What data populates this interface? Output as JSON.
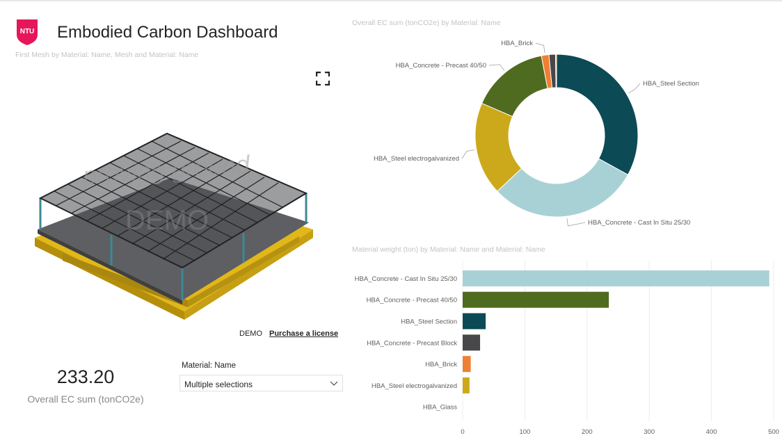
{
  "header": {
    "logo_text": "NTU",
    "title": "Embodied Carbon Dashboard"
  },
  "model_viewer": {
    "title": "First Mesh by Material: Name, Mesh and Material: Name",
    "watermark_line1": "proving ground",
    "watermark_line2": "DEMO",
    "demo_label": "DEMO",
    "license_link": "Purchase a license"
  },
  "kpi": {
    "value": "233.20",
    "label": "Overall EC sum (tonCO2e)"
  },
  "slicer": {
    "label": "Material: Name",
    "value": "Multiple selections"
  },
  "colors": {
    "steel_section": "#0c4a55",
    "cast_in_situ": "#a8d1d5",
    "steel_galv": "#cca91a",
    "precast_4050": "#4f6b1f",
    "brick": "#ef7f33",
    "precast_block": "#48484a",
    "glass": "#e0a81f"
  },
  "chart_data": [
    {
      "type": "pie",
      "title": "Overall EC sum (tonCO2e) by Material: Name",
      "donut": true,
      "slices": [
        {
          "label": "HBA_Steel Section",
          "value": 33.0,
          "color": "#0c4a55"
        },
        {
          "label": "HBA_Concrete - Cast In Situ 25/30",
          "value": 30.0,
          "color": "#a8d1d5"
        },
        {
          "label": "HBA_Steel electrogalvanized",
          "value": 18.5,
          "color": "#cca91a"
        },
        {
          "label": "HBA_Concrete - Precast 40/50",
          "value": 15.5,
          "color": "#4f6b1f"
        },
        {
          "label": "HBA_Brick",
          "value": 1.5,
          "color": "#ef7f33"
        },
        {
          "label": "",
          "value": 1.3,
          "color": "#48484a"
        },
        {
          "label": "",
          "value": 0.2,
          "color": "#e0a81f"
        }
      ]
    },
    {
      "type": "bar",
      "orientation": "horizontal",
      "title": "Material weight (ton) by Material: Name and Material: Name",
      "categories": [
        "HBA_Concrete - Cast In Situ 25/30",
        "HBA_Concrete - Precast 40/50",
        "HBA_Steel Section",
        "HBA_Concrete - Precast Block",
        "HBA_Brick",
        "HBA_Steel electrogalvanized",
        "HBA_Glass"
      ],
      "values": [
        493,
        235,
        37,
        28,
        13,
        11,
        0
      ],
      "colors": [
        "#a8d1d5",
        "#4f6b1f",
        "#0c4a55",
        "#48484a",
        "#ef7f33",
        "#cca91a",
        "#e0a81f"
      ],
      "xlim": [
        0,
        500
      ],
      "xticks": [
        "0",
        "100",
        "200",
        "300",
        "400",
        "500"
      ],
      "grid": true
    }
  ]
}
